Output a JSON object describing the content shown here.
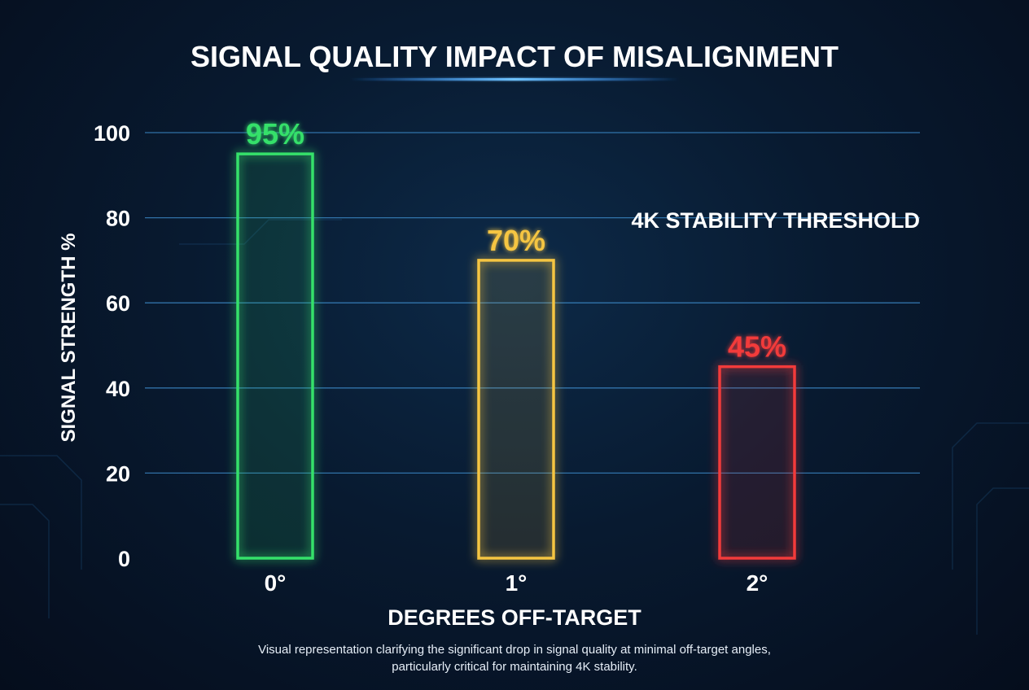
{
  "chart_data": {
    "type": "bar",
    "title": "SIGNAL QUALITY IMPACT OF MISALIGNMENT",
    "xlabel": "DEGREES OFF-TARGET",
    "ylabel": "SIGNAL STRENGTH %",
    "ylim": [
      0,
      100
    ],
    "yticks": [
      0,
      20,
      40,
      60,
      80,
      100
    ],
    "grid": true,
    "categories": [
      "0°",
      "1°",
      "2°"
    ],
    "values": [
      95,
      70,
      45
    ],
    "data_labels": [
      "95%",
      "70%",
      "45%"
    ],
    "bar_colors": [
      "#35e06a",
      "#f5c542",
      "#f23a3a"
    ],
    "threshold": {
      "value": 75,
      "label": "4K STABILITY THRESHOLD",
      "color": "#ffffff"
    },
    "caption": [
      "Visual representation clarifying the significant drop in signal quality at minimal off-target angles,",
      "particularly critical for maintaining 4K stability."
    ]
  }
}
